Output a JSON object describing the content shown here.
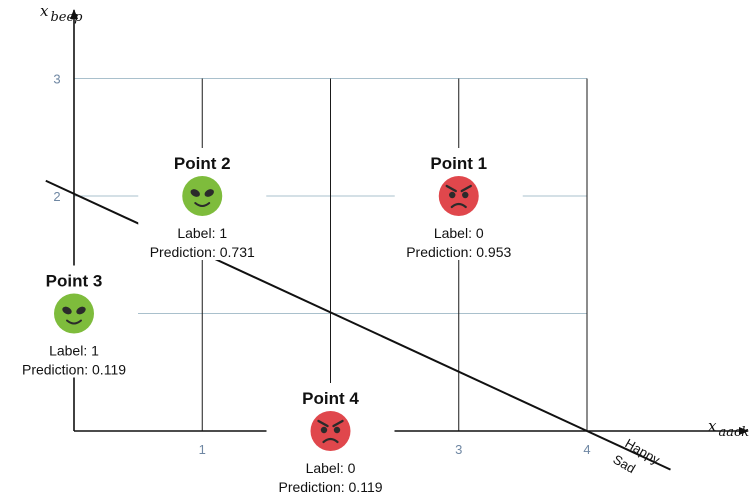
{
  "axes": {
    "x_var": "x",
    "x_sub": "aack",
    "y_var": "x",
    "y_sub": "beep",
    "x_ticks": [
      "1",
      "3",
      "4"
    ],
    "y_ticks": [
      "2",
      "3"
    ],
    "xlim": [
      0,
      4
    ],
    "ylim": [
      0,
      3
    ]
  },
  "boundary": {
    "happy_label": "Happy",
    "sad_label": "Sad",
    "line": {
      "x": [
        -0.22,
        4.0
      ],
      "y": [
        2.13,
        0.0
      ]
    }
  },
  "points": [
    {
      "name": "Point 1",
      "x": 3,
      "y": 2,
      "label_text": "Label: 0",
      "prediction_text": "Prediction: 0.953",
      "face": "sad",
      "face_icon": "angry-alien-icon",
      "color": "#e0474c"
    },
    {
      "name": "Point 2",
      "x": 1,
      "y": 2,
      "label_text": "Label: 1",
      "prediction_text": "Prediction: 0.731",
      "face": "happy",
      "face_icon": "happy-alien-icon",
      "color": "#7ebc3c"
    },
    {
      "name": "Point 3",
      "x": 0,
      "y": 1,
      "label_text": "Label: 1",
      "prediction_text": "Prediction: 0.119",
      "face": "happy",
      "face_icon": "happy-alien-icon",
      "color": "#7ebc3c"
    },
    {
      "name": "Point 4",
      "x": 2,
      "y": 0,
      "label_text": "Label: 0",
      "prediction_text": "Prediction: 0.119",
      "face": "sad",
      "face_icon": "angry-alien-icon",
      "color": "#e0474c"
    }
  ],
  "colors": {
    "grid_horizontal": "#a9c0cc",
    "grid_vertical": "#1a1a1a",
    "axis": "#111111",
    "tick_label": "#6f87a3",
    "happy": "#7ebc3c",
    "sad": "#e0474c"
  }
}
